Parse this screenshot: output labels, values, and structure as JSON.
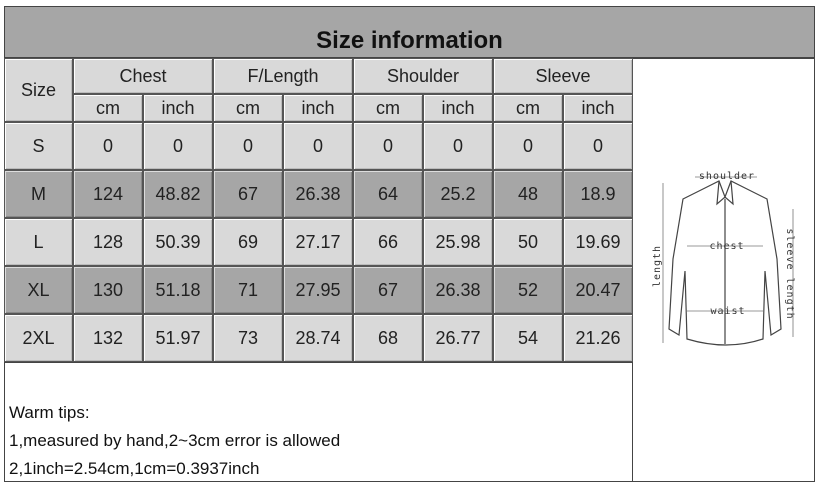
{
  "title": "Size information",
  "table": {
    "size_header": "Size",
    "groups": [
      "Chest",
      "F/Length",
      "Shoulder",
      "Sleeve"
    ],
    "units": [
      "cm",
      "inch"
    ],
    "rows": [
      [
        "S",
        "0",
        "0",
        "0",
        "0",
        "0",
        "0",
        "0",
        "0"
      ],
      [
        "M",
        "124",
        "48.82",
        "67",
        "26.38",
        "64",
        "25.2",
        "48",
        "18.9"
      ],
      [
        "L",
        "128",
        "50.39",
        "69",
        "27.17",
        "66",
        "25.98",
        "50",
        "19.69"
      ],
      [
        "XL",
        "130",
        "51.18",
        "71",
        "27.95",
        "67",
        "26.38",
        "52",
        "20.47"
      ],
      [
        "2XL",
        "132",
        "51.97",
        "73",
        "28.74",
        "68",
        "26.77",
        "54",
        "21.26"
      ]
    ]
  },
  "tips": [
    "Warm tips:",
    "1,measured by hand,2~3cm error is allowed",
    "2,1inch=2.54cm,1cm=0.3937inch"
  ],
  "diagram": {
    "shoulder": "shoulder",
    "chest": "chest",
    "waist": "waist",
    "length": "length",
    "sleeve": "sleeve length"
  }
}
